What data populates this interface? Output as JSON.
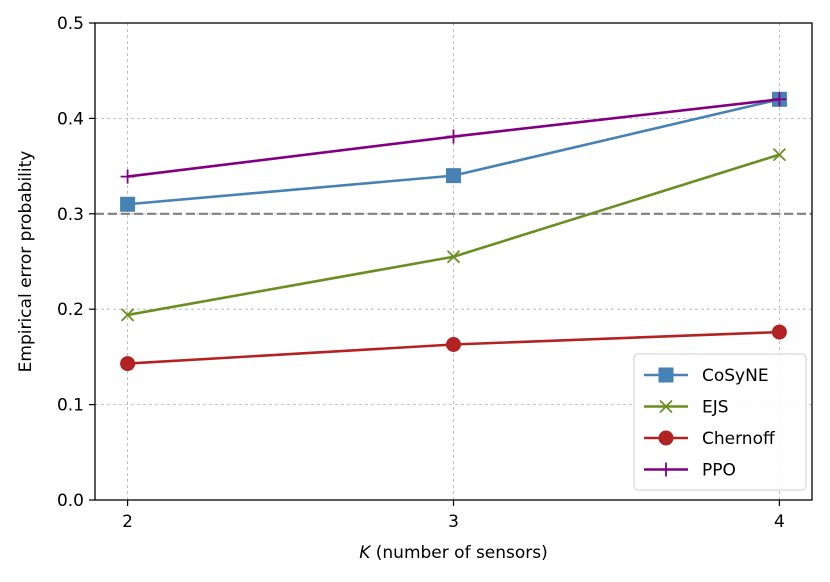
{
  "chart_data": {
    "type": "line",
    "title": "",
    "xlabel_italic": "K",
    "xlabel_rest": " (number of sensors)",
    "ylabel": "Empirical error probability",
    "x": [
      2,
      3,
      4
    ],
    "x_tick_labels": [
      "2",
      "3",
      "4"
    ],
    "y_tick_labels": [
      "0.0",
      "0.1",
      "0.2",
      "0.3",
      "0.4",
      "0.5"
    ],
    "y_ticks": [
      0.0,
      0.1,
      0.2,
      0.3,
      0.4,
      0.5
    ],
    "xlim": [
      1.9,
      4.1
    ],
    "ylim": [
      0.0,
      0.5
    ],
    "grid": true,
    "reference_line": {
      "y": 0.3,
      "color": "#808080",
      "style": "dashed"
    },
    "legend_position": "lower-right",
    "series": [
      {
        "name": "CoSyNE",
        "values": [
          0.31,
          0.34,
          0.42
        ],
        "color": "#4682b4",
        "marker": "square"
      },
      {
        "name": "EJS",
        "values": [
          0.194,
          0.255,
          0.362
        ],
        "color": "#6b8e23",
        "marker": "x"
      },
      {
        "name": "Chernoff",
        "values": [
          0.143,
          0.163,
          0.176
        ],
        "color": "#b22222",
        "marker": "circle"
      },
      {
        "name": "PPO",
        "values": [
          0.339,
          0.381,
          0.42
        ],
        "color": "#800080",
        "marker": "plus"
      }
    ]
  }
}
